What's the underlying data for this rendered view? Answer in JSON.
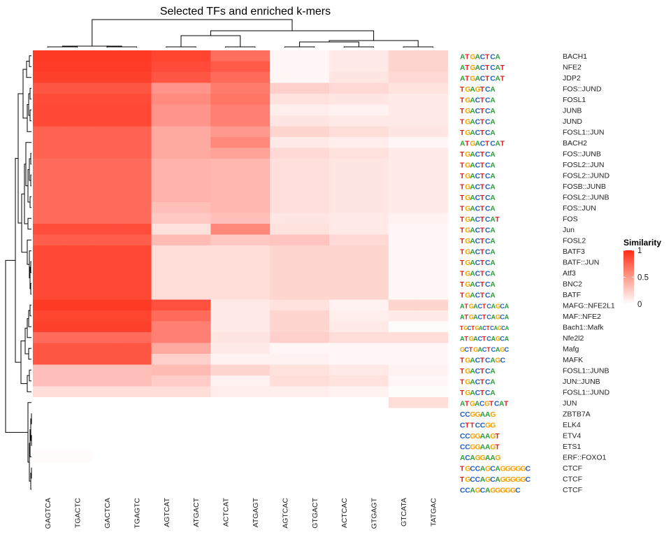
{
  "chart_data": {
    "type": "heatmap",
    "title": "Selected TFs and enriched k-mers",
    "columns": [
      "GAGTCA",
      "TGACTC",
      "GACTCA",
      "TGAGTC",
      "AGTCAT",
      "ATGACT",
      "ACTCAT",
      "ATGAGT",
      "AGTCAC",
      "GTGACT",
      "ACTCAC",
      "GTGAGT",
      "GTCATA",
      "TATGAC"
    ],
    "rows": [
      "BACH1",
      "NFE2",
      "JDP2",
      "FOS::JUND",
      "FOSL1",
      "JUNB",
      "JUND",
      "FOSL1::JUN",
      "BACH2",
      "FOS::JUNB",
      "FOSL2::JUN",
      "FOSL2::JUND",
      "FOSB::JUNB",
      "FOSL2::JUNB",
      "FOS::JUN",
      "FOS",
      "Jun",
      "FOSL2",
      "BATF3",
      "BATF::JUN",
      "Atf3",
      "BNC2",
      "BATF",
      "MAFG::NFE2L1",
      "MAF::NFE2",
      "Bach1::Mafk",
      "Nfe2l2",
      "Mafg",
      "MAFK",
      "FOSL1::JUNB",
      "JUN::JUNB",
      "FOSL1::JUND",
      "JUN",
      "ZBTB7A",
      "ELK4",
      "ETV4",
      "ETS1",
      "ERF::FOXO1",
      "CTCF",
      "CTCF",
      "CTCF"
    ],
    "motif_logos": [
      "ATGACTCA",
      "ATGACTCAT",
      "ATGACTCAT",
      "TGAGTCA",
      "TGACTCA",
      "TGACTCA",
      "TGACTCA",
      "TGACTCA",
      "ATGACTCAT",
      "TGACTCA",
      "TGACTCA",
      "TGACTCA",
      "TGACTCA",
      "TGACTCA",
      "TGACTCA",
      "TGACTCAT",
      "TGACTCA",
      "TGACTCA",
      "TGACTCA",
      "TGACTCA",
      "TGACTCA",
      "TGACTCA",
      "TGACTCA",
      "ATGACTCAGCA",
      "ATGACTCAGCA",
      "TGCTGACTCAGCA",
      "ATGACTCAGCA",
      "GCTGACTCAGC",
      "TGACTCAGC",
      "TGACTCA",
      "TGACTCA",
      "TGACTCA",
      "ATGACGTCAT",
      "CCGGAAG",
      "CTTCCGG",
      "CCGGAAGT",
      "CCGGAAGT",
      "ACAGGAAG",
      "TGCCAGCAGGGGGC",
      "TGCCAGCAGGGGGC",
      "CCAGCAGGGGGC"
    ],
    "values": [
      [
        0.93,
        0.93,
        0.93,
        0.93,
        0.88,
        0.88,
        0.68,
        0.68,
        0.04,
        0.04,
        0.1,
        0.1,
        0.2,
        0.2
      ],
      [
        0.92,
        0.92,
        0.92,
        0.92,
        0.85,
        0.85,
        0.78,
        0.78,
        0.04,
        0.04,
        0.1,
        0.1,
        0.2,
        0.2
      ],
      [
        0.9,
        0.9,
        0.9,
        0.9,
        0.8,
        0.8,
        0.7,
        0.7,
        0.04,
        0.04,
        0.12,
        0.12,
        0.18,
        0.18
      ],
      [
        0.8,
        0.8,
        0.8,
        0.8,
        0.5,
        0.5,
        0.62,
        0.62,
        0.22,
        0.22,
        0.18,
        0.18,
        0.14,
        0.14
      ],
      [
        0.85,
        0.85,
        0.85,
        0.85,
        0.55,
        0.55,
        0.65,
        0.65,
        0.14,
        0.14,
        0.12,
        0.12,
        0.1,
        0.1
      ],
      [
        0.86,
        0.86,
        0.86,
        0.86,
        0.5,
        0.5,
        0.6,
        0.6,
        0.08,
        0.08,
        0.06,
        0.06,
        0.1,
        0.1
      ],
      [
        0.86,
        0.86,
        0.86,
        0.86,
        0.5,
        0.5,
        0.6,
        0.6,
        0.12,
        0.12,
        0.1,
        0.1,
        0.1,
        0.1
      ],
      [
        0.74,
        0.74,
        0.74,
        0.74,
        0.4,
        0.4,
        0.48,
        0.48,
        0.2,
        0.2,
        0.16,
        0.16,
        0.12,
        0.12
      ],
      [
        0.74,
        0.74,
        0.74,
        0.74,
        0.4,
        0.4,
        0.56,
        0.56,
        0.1,
        0.1,
        0.08,
        0.08,
        0.04,
        0.04
      ],
      [
        0.74,
        0.74,
        0.74,
        0.74,
        0.4,
        0.4,
        0.44,
        0.44,
        0.18,
        0.18,
        0.14,
        0.14,
        0.1,
        0.1
      ],
      [
        0.7,
        0.7,
        0.7,
        0.7,
        0.36,
        0.36,
        0.34,
        0.34,
        0.15,
        0.15,
        0.12,
        0.12,
        0.1,
        0.1
      ],
      [
        0.7,
        0.7,
        0.7,
        0.7,
        0.36,
        0.36,
        0.34,
        0.34,
        0.15,
        0.15,
        0.12,
        0.12,
        0.1,
        0.1
      ],
      [
        0.7,
        0.7,
        0.7,
        0.7,
        0.36,
        0.36,
        0.34,
        0.34,
        0.15,
        0.15,
        0.12,
        0.12,
        0.1,
        0.1
      ],
      [
        0.7,
        0.7,
        0.7,
        0.7,
        0.36,
        0.36,
        0.34,
        0.34,
        0.15,
        0.15,
        0.12,
        0.12,
        0.1,
        0.1
      ],
      [
        0.7,
        0.7,
        0.7,
        0.7,
        0.3,
        0.3,
        0.34,
        0.34,
        0.15,
        0.15,
        0.12,
        0.12,
        0.1,
        0.1
      ],
      [
        0.7,
        0.7,
        0.7,
        0.7,
        0.26,
        0.26,
        0.3,
        0.3,
        0.12,
        0.12,
        0.1,
        0.1,
        0.06,
        0.06
      ],
      [
        0.84,
        0.84,
        0.84,
        0.84,
        0.14,
        0.14,
        0.56,
        0.56,
        0.14,
        0.14,
        0.1,
        0.1,
        0.04,
        0.04
      ],
      [
        0.76,
        0.76,
        0.76,
        0.76,
        0.32,
        0.32,
        0.26,
        0.26,
        0.28,
        0.28,
        0.18,
        0.18,
        0.04,
        0.04
      ],
      [
        0.86,
        0.86,
        0.86,
        0.86,
        0.16,
        0.16,
        0.16,
        0.16,
        0.2,
        0.2,
        0.2,
        0.2,
        0.04,
        0.04
      ],
      [
        0.86,
        0.86,
        0.86,
        0.86,
        0.16,
        0.16,
        0.16,
        0.16,
        0.2,
        0.2,
        0.2,
        0.2,
        0.04,
        0.04
      ],
      [
        0.86,
        0.86,
        0.86,
        0.86,
        0.16,
        0.16,
        0.16,
        0.16,
        0.2,
        0.2,
        0.2,
        0.2,
        0.04,
        0.04
      ],
      [
        0.86,
        0.86,
        0.86,
        0.86,
        0.16,
        0.16,
        0.16,
        0.16,
        0.2,
        0.2,
        0.2,
        0.2,
        0.04,
        0.04
      ],
      [
        0.86,
        0.86,
        0.86,
        0.86,
        0.16,
        0.16,
        0.16,
        0.16,
        0.2,
        0.2,
        0.2,
        0.2,
        0.04,
        0.04
      ],
      [
        0.93,
        0.93,
        0.93,
        0.93,
        0.82,
        0.82,
        0.1,
        0.1,
        0.14,
        0.14,
        0.06,
        0.06,
        0.2,
        0.2
      ],
      [
        0.88,
        0.88,
        0.88,
        0.88,
        0.7,
        0.7,
        0.1,
        0.1,
        0.2,
        0.2,
        0.08,
        0.08,
        0.1,
        0.1
      ],
      [
        0.9,
        0.9,
        0.9,
        0.9,
        0.6,
        0.6,
        0.1,
        0.1,
        0.2,
        0.2,
        0.1,
        0.1,
        0.02,
        0.02
      ],
      [
        0.7,
        0.7,
        0.7,
        0.7,
        0.6,
        0.6,
        0.12,
        0.12,
        0.22,
        0.22,
        0.16,
        0.16,
        0.16,
        0.16
      ],
      [
        0.8,
        0.8,
        0.8,
        0.8,
        0.4,
        0.4,
        0.1,
        0.1,
        0.04,
        0.04,
        0.04,
        0.04,
        0.04,
        0.04
      ],
      [
        0.8,
        0.8,
        0.8,
        0.8,
        0.22,
        0.22,
        0.06,
        0.06,
        0.06,
        0.06,
        0.04,
        0.04,
        0.04,
        0.04
      ],
      [
        0.3,
        0.3,
        0.3,
        0.3,
        0.32,
        0.32,
        0.2,
        0.2,
        0.14,
        0.14,
        0.1,
        0.1,
        0.06,
        0.06
      ],
      [
        0.3,
        0.3,
        0.3,
        0.3,
        0.24,
        0.24,
        0.06,
        0.06,
        0.16,
        0.16,
        0.14,
        0.14,
        0.04,
        0.04
      ],
      [
        0.16,
        0.16,
        0.16,
        0.16,
        0.16,
        0.16,
        0.08,
        0.08,
        0.08,
        0.08,
        0.06,
        0.06,
        0.02,
        0.02
      ],
      [
        0,
        0,
        0,
        0,
        0,
        0,
        0,
        0,
        0,
        0,
        0,
        0,
        0.16,
        0.16
      ],
      [
        0,
        0,
        0,
        0,
        0,
        0,
        0,
        0,
        0,
        0,
        0,
        0,
        0,
        0
      ],
      [
        0,
        0,
        0,
        0,
        0,
        0,
        0,
        0,
        0,
        0,
        0,
        0,
        0,
        0
      ],
      [
        0,
        0,
        0,
        0,
        0,
        0,
        0,
        0,
        0,
        0,
        0,
        0,
        0,
        0
      ],
      [
        0,
        0,
        0,
        0,
        0,
        0,
        0,
        0,
        0,
        0,
        0,
        0,
        0,
        0
      ],
      [
        0.02,
        0.02,
        0,
        0,
        0,
        0,
        0,
        0,
        0,
        0,
        0,
        0,
        0,
        0
      ],
      [
        0,
        0,
        0,
        0,
        0,
        0,
        0,
        0,
        0,
        0,
        0,
        0,
        0,
        0
      ],
      [
        0,
        0,
        0,
        0,
        0,
        0,
        0,
        0,
        0,
        0,
        0,
        0,
        0,
        0
      ],
      [
        0,
        0,
        0,
        0,
        0,
        0,
        0,
        0,
        0,
        0,
        0,
        0,
        0,
        0
      ]
    ],
    "legend": {
      "title": "Similarity",
      "ticks": [
        "1",
        "0.5",
        "0"
      ],
      "range": [
        0,
        1
      ]
    },
    "colors": {
      "low": "#ffffff",
      "high": "#ff2b14"
    }
  }
}
